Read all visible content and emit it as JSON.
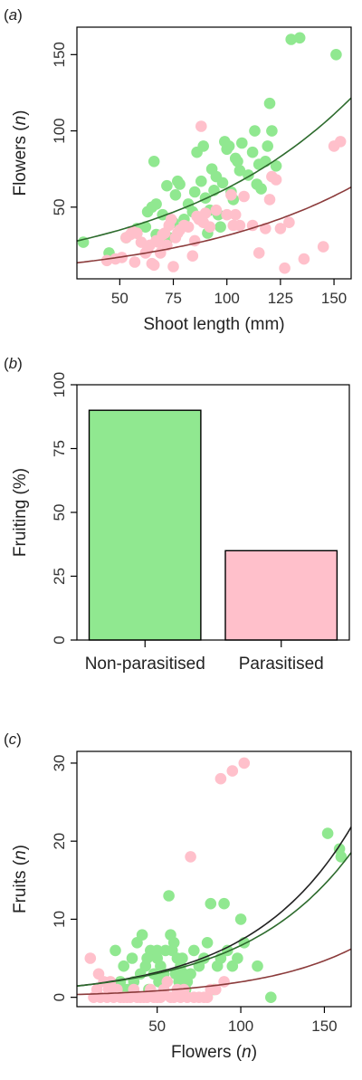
{
  "colors": {
    "non_parasitised": "#90e890",
    "parasitised": "#ffc0cb",
    "fit_non_parasitised": "#2d6b2d",
    "fit_parasitised": "#8b3b3b",
    "fit_overall": "#222222",
    "bar_stroke": "#000000"
  },
  "chart_data": [
    {
      "type": "scatter",
      "panel_label": "(a)",
      "title": "",
      "xlabel_parts": [
        "Shoot length (mm)"
      ],
      "ylabel_parts": [
        "Flowers (",
        "n",
        ")"
      ],
      "xlim": [
        30,
        158
      ],
      "ylim": [
        3,
        168
      ],
      "xticks": [
        50,
        75,
        100,
        125,
        150
      ],
      "yticks": [
        50,
        100,
        150
      ],
      "series": [
        {
          "group": "non_parasitised",
          "points": [
            [
              33,
              27
            ],
            [
              45,
              20
            ],
            [
              53,
              30
            ],
            [
              58,
              33
            ],
            [
              58,
              36
            ],
            [
              62,
              37
            ],
            [
              63,
              47
            ],
            [
              65,
              50
            ],
            [
              67,
              52
            ],
            [
              66,
              80
            ],
            [
              67,
              32
            ],
            [
              70,
              45
            ],
            [
              72,
              64
            ],
            [
              73,
              30
            ],
            [
              75,
              40
            ],
            [
              76,
              58
            ],
            [
              77,
              67
            ],
            [
              78,
              65
            ],
            [
              80,
              42
            ],
            [
              82,
              52
            ],
            [
              84,
              47
            ],
            [
              85,
              60
            ],
            [
              86,
              86
            ],
            [
              88,
              67
            ],
            [
              89,
              90
            ],
            [
              90,
              56
            ],
            [
              91,
              33
            ],
            [
              92,
              48
            ],
            [
              93,
              75
            ],
            [
              94,
              61
            ],
            [
              95,
              70
            ],
            [
              96,
              45
            ],
            [
              97,
              37
            ],
            [
              98,
              66
            ],
            [
              99,
              93
            ],
            [
              100,
              88
            ],
            [
              101,
              90
            ],
            [
              102,
              60
            ],
            [
              103,
              55
            ],
            [
              104,
              82
            ],
            [
              105,
              80
            ],
            [
              106,
              74
            ],
            [
              107,
              92
            ],
            [
              110,
              71
            ],
            [
              112,
              86
            ],
            [
              113,
              100
            ],
            [
              114,
              65
            ],
            [
              115,
              78
            ],
            [
              116,
              62
            ],
            [
              118,
              80
            ],
            [
              119,
              90
            ],
            [
              120,
              118
            ],
            [
              121,
              100
            ],
            [
              123,
              77
            ],
            [
              130,
              160
            ],
            [
              134,
              161
            ],
            [
              151,
              150
            ]
          ]
        },
        {
          "group": "parasitised",
          "points": [
            [
              44,
              15
            ],
            [
              48,
              16
            ],
            [
              51,
              17
            ],
            [
              53,
              30
            ],
            [
              55,
              32
            ],
            [
              56,
              34
            ],
            [
              57,
              14
            ],
            [
              58,
              33
            ],
            [
              60,
              27
            ],
            [
              62,
              20
            ],
            [
              63,
              22
            ],
            [
              64,
              25
            ],
            [
              65,
              13
            ],
            [
              66,
              12
            ],
            [
              67,
              28
            ],
            [
              68,
              27
            ],
            [
              69,
              20
            ],
            [
              70,
              32
            ],
            [
              71,
              33
            ],
            [
              72,
              25
            ],
            [
              73,
              38
            ],
            [
              74,
              42
            ],
            [
              75,
              11
            ],
            [
              76,
              30
            ],
            [
              77,
              33
            ],
            [
              78,
              35
            ],
            [
              80,
              38
            ],
            [
              82,
              37
            ],
            [
              84,
              18
            ],
            [
              85,
              28
            ],
            [
              86,
              44
            ],
            [
              87,
              42
            ],
            [
              88,
              103
            ],
            [
              89,
              40
            ],
            [
              90,
              46
            ],
            [
              92,
              37
            ],
            [
              95,
              48
            ],
            [
              100,
              45
            ],
            [
              102,
              58
            ],
            [
              103,
              38
            ],
            [
              104,
              45
            ],
            [
              106,
              38
            ],
            [
              108,
              57
            ],
            [
              112,
              38
            ],
            [
              115,
              20
            ],
            [
              118,
              36
            ],
            [
              120,
              55
            ],
            [
              121,
              70
            ],
            [
              123,
              68
            ],
            [
              125,
              36
            ],
            [
              127,
              10
            ],
            [
              129,
              40
            ],
            [
              136,
              16
            ],
            [
              145,
              24
            ],
            [
              150,
              90
            ],
            [
              153,
              93
            ]
          ]
        }
      ],
      "fits": [
        {
          "group": "non_parasitised",
          "curve": "exp",
          "a": 19.7,
          "b": 0.01152,
          "x_range": [
            30,
            158
          ]
        },
        {
          "group": "parasitised",
          "curve": "exp",
          "a": 9.43,
          "b": 0.01203,
          "x_range": [
            30,
            158
          ]
        }
      ]
    },
    {
      "type": "bar",
      "panel_label": "(b)",
      "title": "",
      "xlabel": "",
      "ylabel": "Fruiting (%)",
      "ylim": [
        0,
        100
      ],
      "yticks": [
        0,
        25,
        50,
        75,
        100
      ],
      "categories": [
        "Non-parasitised",
        "Parasitised"
      ],
      "values": [
        90,
        35
      ],
      "bar_colors": [
        "non_parasitised",
        "parasitised"
      ]
    },
    {
      "type": "scatter",
      "panel_label": "(c)",
      "title": "",
      "xlabel_parts": [
        "Flowers (",
        "n",
        ")"
      ],
      "ylabel_parts": [
        "Fruits (",
        "n",
        ")"
      ],
      "xlim": [
        2,
        166
      ],
      "ylim": [
        -1.2,
        31.5
      ],
      "xticks": [
        50,
        100,
        150
      ],
      "yticks": [
        0,
        10,
        20,
        30
      ],
      "series": [
        {
          "group": "non_parasitised",
          "points": [
            [
              25,
              6
            ],
            [
              28,
              2
            ],
            [
              30,
              4
            ],
            [
              32,
              1
            ],
            [
              35,
              5
            ],
            [
              36,
              2
            ],
            [
              38,
              7
            ],
            [
              40,
              3
            ],
            [
              41,
              8
            ],
            [
              43,
              4
            ],
            [
              44,
              5
            ],
            [
              45,
              1
            ],
            [
              46,
              6
            ],
            [
              48,
              3
            ],
            [
              50,
              6
            ],
            [
              50,
              5
            ],
            [
              51,
              2
            ],
            [
              52,
              4
            ],
            [
              54,
              3
            ],
            [
              55,
              6
            ],
            [
              57,
              13
            ],
            [
              58,
              8
            ],
            [
              59,
              6
            ],
            [
              60,
              7
            ],
            [
              61,
              3
            ],
            [
              62,
              5
            ],
            [
              63,
              2
            ],
            [
              64,
              4
            ],
            [
              65,
              5
            ],
            [
              66,
              3
            ],
            [
              67,
              1
            ],
            [
              68,
              2
            ],
            [
              70,
              3
            ],
            [
              72,
              6
            ],
            [
              75,
              4
            ],
            [
              78,
              5
            ],
            [
              80,
              7
            ],
            [
              82,
              12
            ],
            [
              84,
              1
            ],
            [
              86,
              4
            ],
            [
              88,
              5
            ],
            [
              90,
              12
            ],
            [
              92,
              6
            ],
            [
              95,
              4
            ],
            [
              98,
              5
            ],
            [
              100,
              10
            ],
            [
              102,
              7
            ],
            [
              110,
              4
            ],
            [
              118,
              0
            ],
            [
              152,
              21
            ],
            [
              159,
              19
            ],
            [
              160,
              18
            ]
          ]
        },
        {
          "group": "parasitised",
          "points": [
            [
              10,
              5
            ],
            [
              12,
              0
            ],
            [
              14,
              1
            ],
            [
              15,
              3
            ],
            [
              16,
              0
            ],
            [
              18,
              2
            ],
            [
              20,
              0
            ],
            [
              21,
              1
            ],
            [
              22,
              2
            ],
            [
              24,
              0
            ],
            [
              26,
              1
            ],
            [
              28,
              0
            ],
            [
              30,
              0
            ],
            [
              32,
              0
            ],
            [
              34,
              0
            ],
            [
              36,
              1
            ],
            [
              38,
              0
            ],
            [
              40,
              0
            ],
            [
              42,
              0
            ],
            [
              44,
              0
            ],
            [
              46,
              1
            ],
            [
              48,
              0
            ],
            [
              50,
              0
            ],
            [
              52,
              0
            ],
            [
              54,
              1
            ],
            [
              56,
              2
            ],
            [
              58,
              0
            ],
            [
              60,
              0
            ],
            [
              62,
              1
            ],
            [
              64,
              0
            ],
            [
              66,
              1
            ],
            [
              68,
              0
            ],
            [
              70,
              18
            ],
            [
              72,
              0
            ],
            [
              75,
              0
            ],
            [
              78,
              0
            ],
            [
              80,
              0
            ],
            [
              82,
              1
            ],
            [
              85,
              1
            ],
            [
              88,
              28
            ],
            [
              90,
              2
            ],
            [
              95,
              29
            ],
            [
              102,
              30
            ]
          ]
        }
      ],
      "fits": [
        {
          "group": "fit_overall",
          "curve": "exp",
          "a": 1.4,
          "b": 0.01654,
          "x_range": [
            2,
            166
          ]
        },
        {
          "group": "non_parasitised",
          "curve": "exp",
          "a": 1.4,
          "b": 0.01556,
          "x_range": [
            2,
            166
          ]
        },
        {
          "group": "parasitised",
          "curve": "exp",
          "a": 0.35,
          "b": 0.0173,
          "x_range": [
            2,
            166
          ]
        }
      ]
    }
  ]
}
